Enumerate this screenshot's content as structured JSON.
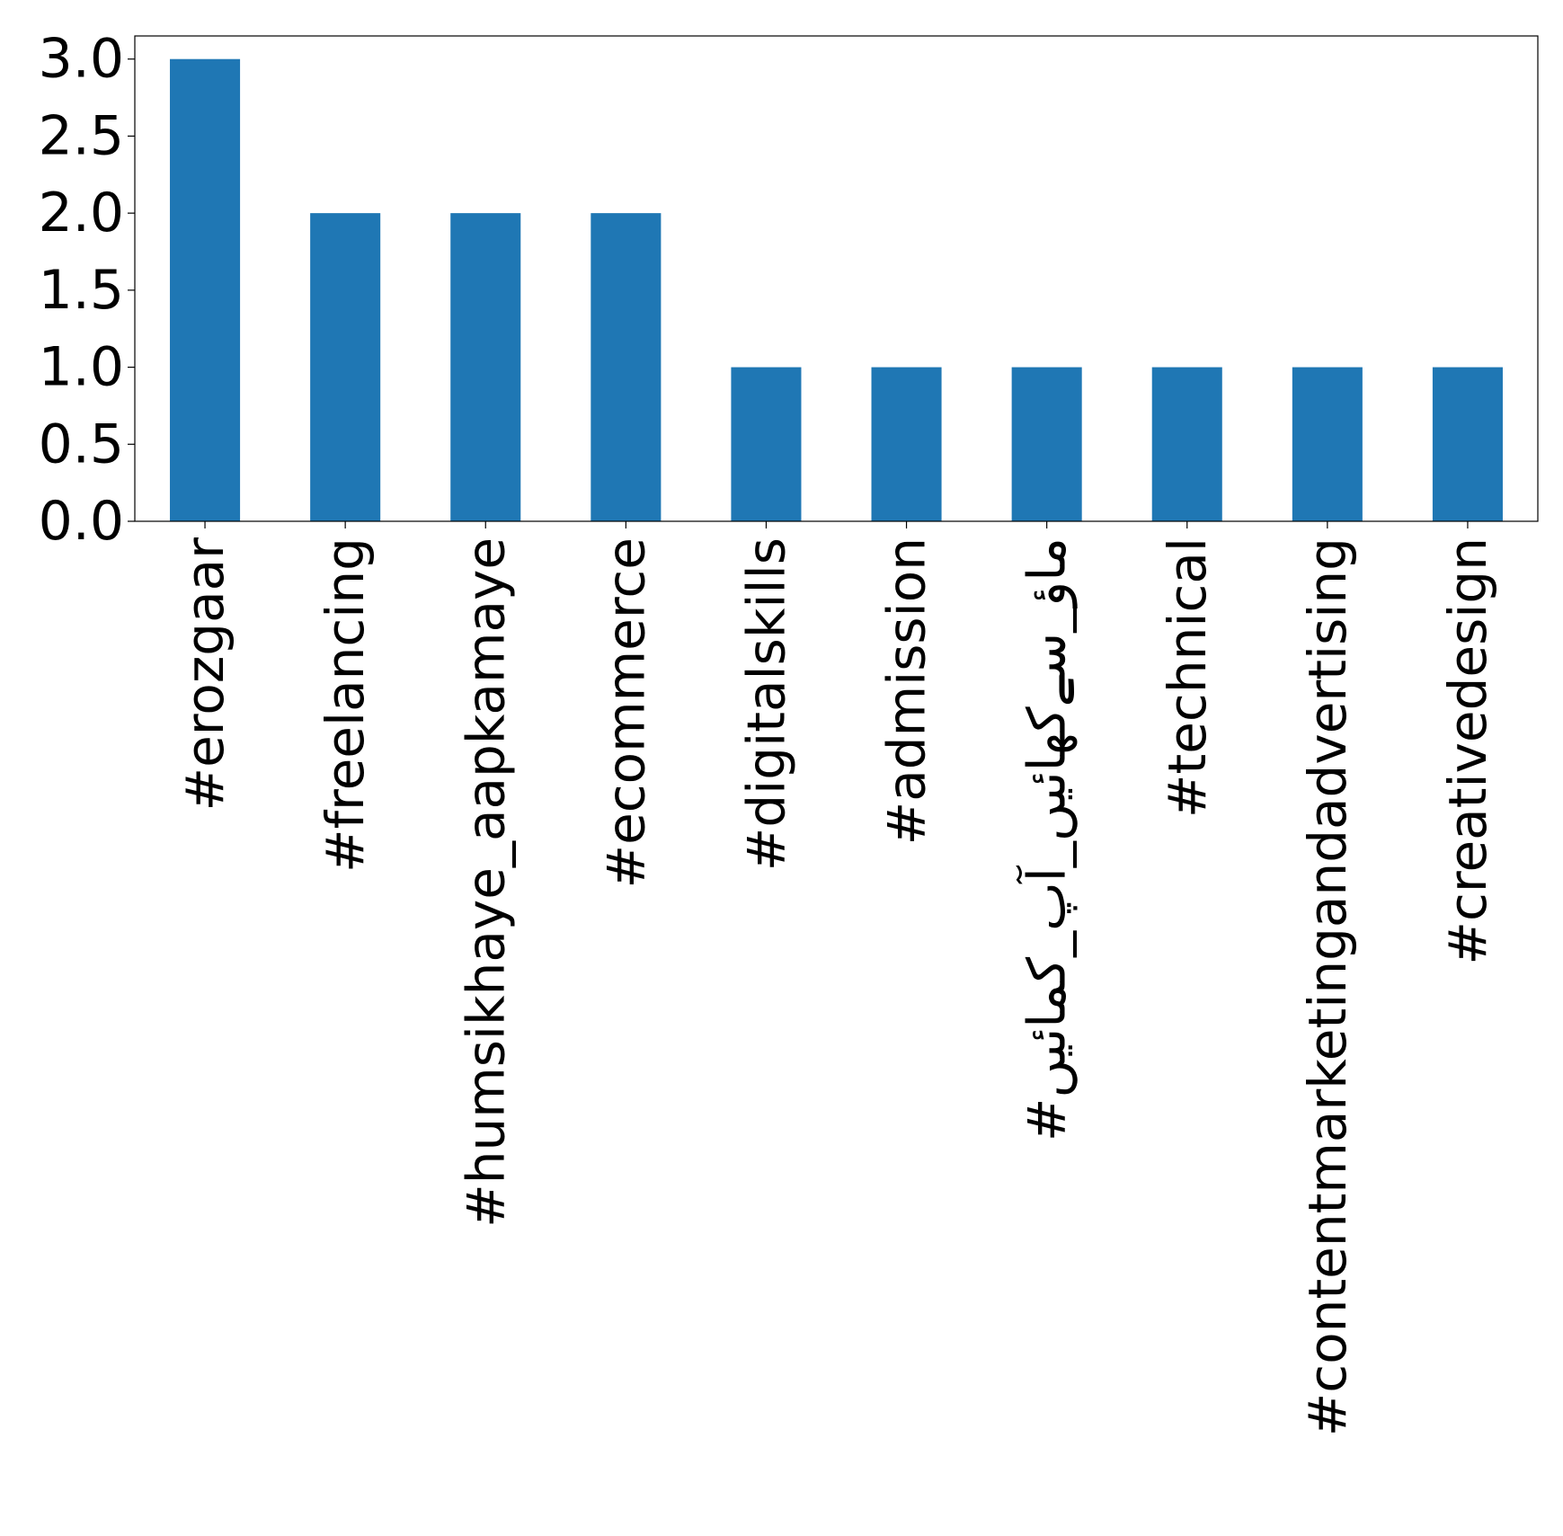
{
  "chart_data": {
    "type": "bar",
    "title": "",
    "xlabel": "",
    "ylabel": "",
    "categories": [
      "#erozgaar",
      "#freelancing",
      "#humsikhaye_aapkamaye",
      "#ecommerce",
      "#digitalskills",
      "#admission",
      "#ماؤ_سےکھائیں_آپ_کمائیں",
      "#technical",
      "#contentmarketingandadvertising",
      "#creativedesign"
    ],
    "values": [
      3,
      2,
      2,
      2,
      1,
      1,
      1,
      1,
      1,
      1
    ],
    "ylim": [
      0,
      3.15
    ],
    "yticks": [
      "0.0",
      "0.5",
      "1.0",
      "1.5",
      "2.0",
      "2.5",
      "3.0"
    ],
    "ytick_values": [
      0,
      0.5,
      1.0,
      1.5,
      2.0,
      2.5,
      3.0
    ],
    "grid": false,
    "legend": "none",
    "colors": {
      "bar": "#1f77b4",
      "axis": "#000000",
      "background": "#ffffff"
    }
  }
}
